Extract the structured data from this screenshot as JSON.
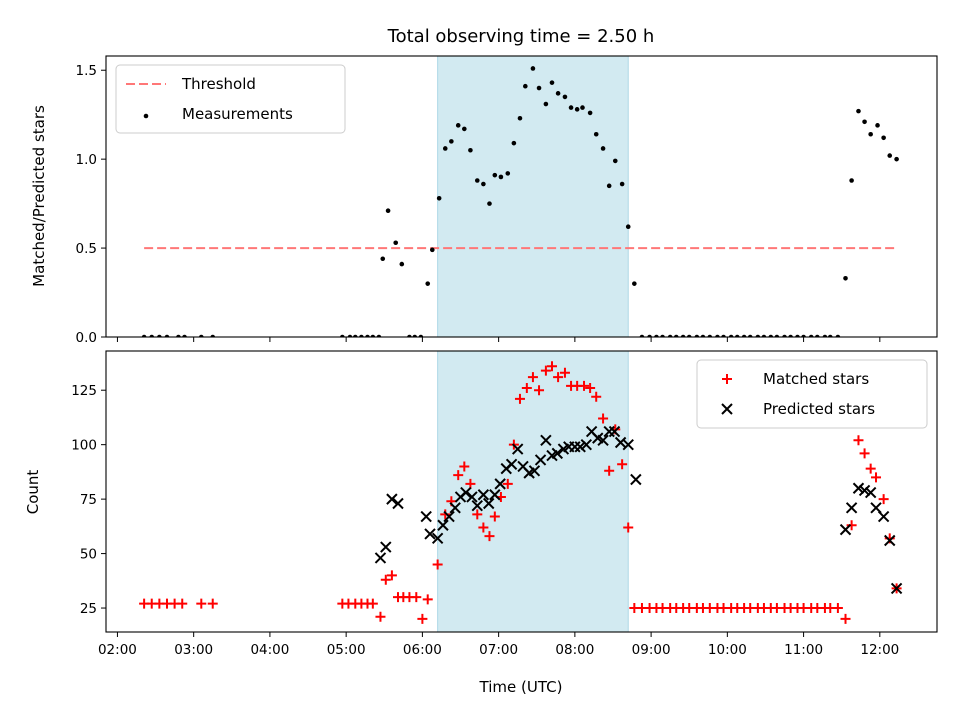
{
  "chart_data": [
    {
      "id": "top",
      "type": "scatter",
      "title": "Total observing time = 2.50 h",
      "xlabel": "",
      "ylabel": "Matched/Predicted stars",
      "xlim": [
        1.85,
        12.75
      ],
      "ylim": [
        0,
        1.58
      ],
      "yticks": [
        {
          "v": 0,
          "label": "0.0"
        },
        {
          "v": 0.5,
          "label": "0.5"
        },
        {
          "v": 1.0,
          "label": "1.0"
        },
        {
          "v": 1.5,
          "label": "1.5"
        }
      ],
      "shaded_x": [
        6.2,
        8.7
      ],
      "shade_color": "#add8e6",
      "legend_position": "upper left",
      "threshold": {
        "name": "Threshold",
        "value": 0.5,
        "x": [
          2.35,
          12.2
        ],
        "color": "#ff7777"
      },
      "series": [
        {
          "name": "Measurements",
          "color": "#000000",
          "x": [
            2.35,
            2.45,
            2.55,
            2.65,
            2.8,
            2.88,
            3.1,
            3.25,
            4.95,
            5.05,
            5.12,
            5.2,
            5.28,
            5.35,
            5.43,
            5.48,
            5.55,
            5.65,
            5.73,
            5.83,
            5.9,
            5.98,
            6.07,
            6.13,
            6.22,
            6.3,
            6.38,
            6.47,
            6.55,
            6.63,
            6.72,
            6.8,
            6.88,
            6.95,
            7.03,
            7.12,
            7.2,
            7.28,
            7.35,
            7.45,
            7.53,
            7.62,
            7.7,
            7.78,
            7.87,
            7.95,
            8.03,
            8.1,
            8.2,
            8.28,
            8.37,
            8.45,
            8.53,
            8.62,
            8.7,
            8.78,
            8.88,
            8.98,
            9.07,
            9.15,
            9.25,
            9.33,
            9.42,
            9.5,
            9.6,
            9.68,
            9.77,
            9.87,
            9.95,
            10.05,
            10.13,
            10.22,
            10.3,
            10.4,
            10.48,
            10.57,
            10.65,
            10.75,
            10.83,
            10.92,
            11.0,
            11.1,
            11.18,
            11.28,
            11.35,
            11.45,
            11.55,
            11.63,
            11.72,
            11.8,
            11.88,
            11.97,
            12.05,
            12.13,
            12.22
          ],
          "y": [
            0,
            0,
            0,
            0,
            0,
            0,
            0,
            0,
            0,
            0,
            0,
            0,
            0,
            0,
            0,
            0.44,
            0.71,
            0.53,
            0.41,
            0,
            0,
            0,
            0.3,
            0.49,
            0.78,
            1.06,
            1.1,
            1.19,
            1.17,
            1.05,
            0.88,
            0.86,
            0.75,
            0.91,
            0.9,
            0.92,
            1.09,
            1.23,
            1.41,
            1.51,
            1.4,
            1.31,
            1.43,
            1.37,
            1.35,
            1.29,
            1.28,
            1.29,
            1.26,
            1.14,
            1.06,
            0.85,
            0.99,
            0.86,
            0.62,
            0.3,
            0,
            0,
            0,
            0,
            0,
            0,
            0,
            0,
            0,
            0,
            0,
            0,
            0,
            0,
            0,
            0,
            0,
            0,
            0,
            0,
            0,
            0,
            0,
            0,
            0,
            0,
            0,
            0,
            0,
            0,
            0.33,
            0.88,
            1.27,
            1.21,
            1.14,
            1.19,
            1.12,
            1.02,
            1.0
          ]
        }
      ]
    },
    {
      "id": "bottom",
      "type": "scatter",
      "title": "",
      "xlabel": "Time (UTC)",
      "ylabel": "Count",
      "xlim": [
        1.85,
        12.75
      ],
      "ylim": [
        14,
        143
      ],
      "yticks": [
        {
          "v": 25,
          "label": "25"
        },
        {
          "v": 50,
          "label": "50"
        },
        {
          "v": 75,
          "label": "75"
        },
        {
          "v": 100,
          "label": "100"
        },
        {
          "v": 125,
          "label": "125"
        }
      ],
      "xticks": [
        {
          "v": 2,
          "label": "02:00"
        },
        {
          "v": 3,
          "label": "03:00"
        },
        {
          "v": 4,
          "label": "04:00"
        },
        {
          "v": 5,
          "label": "05:00"
        },
        {
          "v": 6,
          "label": "06:00"
        },
        {
          "v": 7,
          "label": "07:00"
        },
        {
          "v": 8,
          "label": "08:00"
        },
        {
          "v": 9,
          "label": "09:00"
        },
        {
          "v": 10,
          "label": "10:00"
        },
        {
          "v": 11,
          "label": "11:00"
        },
        {
          "v": 12,
          "label": "12:00"
        }
      ],
      "shaded_x": [
        6.2,
        8.7
      ],
      "shade_color": "#add8e6",
      "legend_position": "upper right",
      "series": [
        {
          "name": "Matched stars",
          "color": "#ff0000",
          "marker": "plus",
          "x": [
            2.35,
            2.45,
            2.55,
            2.65,
            2.75,
            2.85,
            3.1,
            3.25,
            4.95,
            5.03,
            5.12,
            5.2,
            5.28,
            5.35,
            5.45,
            5.52,
            5.6,
            5.68,
            5.75,
            5.83,
            5.92,
            6.0,
            6.07,
            6.2,
            6.3,
            6.38,
            6.47,
            6.55,
            6.63,
            6.72,
            6.8,
            6.88,
            6.95,
            7.03,
            7.12,
            7.2,
            7.28,
            7.37,
            7.45,
            7.53,
            7.62,
            7.7,
            7.78,
            7.87,
            7.95,
            8.03,
            8.12,
            8.2,
            8.28,
            8.37,
            8.45,
            8.53,
            8.62,
            8.7,
            8.78,
            8.88,
            8.98,
            9.07,
            9.15,
            9.25,
            9.33,
            9.42,
            9.5,
            9.6,
            9.68,
            9.77,
            9.87,
            9.95,
            10.05,
            10.13,
            10.22,
            10.3,
            10.4,
            10.48,
            10.57,
            10.65,
            10.75,
            10.83,
            10.92,
            11.0,
            11.1,
            11.18,
            11.28,
            11.35,
            11.45,
            11.55,
            11.63,
            11.72,
            11.8,
            11.88,
            11.95,
            12.05,
            12.13,
            12.22
          ],
          "y": [
            27,
            27,
            27,
            27,
            27,
            27,
            27,
            27,
            27,
            27,
            27,
            27,
            27,
            27,
            21,
            38,
            40,
            30,
            30,
            30,
            30,
            20,
            29,
            45,
            68,
            74,
            86,
            90,
            82,
            68,
            62,
            58,
            67,
            76,
            82,
            100,
            121,
            126,
            131,
            125,
            134,
            136,
            131,
            133,
            127,
            127,
            127,
            126,
            122,
            112,
            88,
            107,
            91,
            62,
            25,
            25,
            25,
            25,
            25,
            25,
            25,
            25,
            25,
            25,
            25,
            25,
            25,
            25,
            25,
            25,
            25,
            25,
            25,
            25,
            25,
            25,
            25,
            25,
            25,
            25,
            25,
            25,
            25,
            25,
            25,
            20,
            63,
            102,
            96,
            89,
            85,
            75,
            57,
            34
          ]
        },
        {
          "name": "Predicted stars",
          "color": "#000000",
          "marker": "x",
          "x": [
            5.45,
            5.52,
            5.6,
            5.68,
            6.05,
            6.1,
            6.2,
            6.27,
            6.35,
            6.43,
            6.5,
            6.57,
            6.65,
            6.72,
            6.8,
            6.87,
            6.95,
            7.02,
            7.1,
            7.17,
            7.25,
            7.32,
            7.4,
            7.47,
            7.55,
            7.62,
            7.7,
            7.77,
            7.85,
            7.92,
            8.0,
            8.07,
            8.15,
            8.22,
            8.3,
            8.37,
            8.45,
            8.52,
            8.6,
            8.7,
            8.8,
            11.55,
            11.63,
            11.72,
            11.8,
            11.88,
            11.95,
            12.05,
            12.13,
            12.22
          ],
          "y": [
            48,
            53,
            75,
            73,
            67,
            59,
            57,
            63,
            67,
            71,
            76,
            78,
            76,
            72,
            77,
            73,
            77,
            82,
            89,
            91,
            98,
            90,
            87,
            88,
            93,
            102,
            95,
            96,
            98,
            99,
            99,
            99,
            100,
            106,
            103,
            102,
            106,
            106,
            101,
            100,
            84,
            61,
            71,
            80,
            79,
            78,
            71,
            67,
            56,
            34
          ]
        }
      ]
    }
  ]
}
